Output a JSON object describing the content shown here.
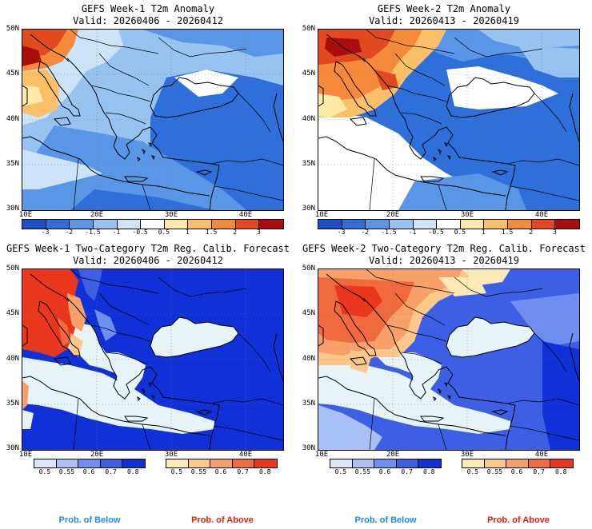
{
  "panels": [
    {
      "title": "GEFS Week-1 T2m Anomaly",
      "valid": "Valid: 20260406 - 20260412"
    },
    {
      "title": "GEFS Week-2 T2m Anomaly",
      "valid": "Valid: 20260413 - 20260419"
    },
    {
      "title": "GEFS Week-1 Two-Category T2m Reg. Calib. Forecast",
      "valid": "Valid: 20260406 - 20260412"
    },
    {
      "title": "GEFS Week-2 Two-Category T2m Reg. Calib. Forecast",
      "valid": "Valid: 20260413 - 20260419"
    }
  ],
  "lat_labels": [
    "50N",
    "45N",
    "40N",
    "35N",
    "30N"
  ],
  "lon_labels": [
    "10E",
    "20E",
    "30E",
    "40E"
  ],
  "anomaly_colorbar": {
    "labels": [
      "-3",
      "-2",
      "-1.5",
      "-1",
      "-0.5",
      "0.5",
      "1",
      "1.5",
      "2",
      "3"
    ],
    "colors": [
      "#1b4fc8",
      "#2e6fd9",
      "#5a96e6",
      "#97c3f0",
      "#cde4f8",
      "#ffffff",
      "#ffe9a8",
      "#fbc067",
      "#f58a3a",
      "#e04a1e",
      "#a90d0d"
    ]
  },
  "prob_below": {
    "labels": [
      "0.5",
      "0.55",
      "0.6",
      "0.7",
      "0.8"
    ],
    "colors": [
      "#dbe7fb",
      "#a8c0f5",
      "#6e8ff0",
      "#3c5fe6",
      "#1030d8"
    ],
    "caption": "Prob. of Below"
  },
  "prob_above": {
    "labels": [
      "0.5",
      "0.55",
      "0.6",
      "0.7",
      "0.8"
    ],
    "colors": [
      "#fde9b5",
      "#fbc88a",
      "#f7a06a",
      "#f06a3e",
      "#e8371c"
    ],
    "caption": "Prob. of Above"
  },
  "colors": {
    "below_caption": "#1e8be0",
    "above_caption": "#e01e10"
  }
}
